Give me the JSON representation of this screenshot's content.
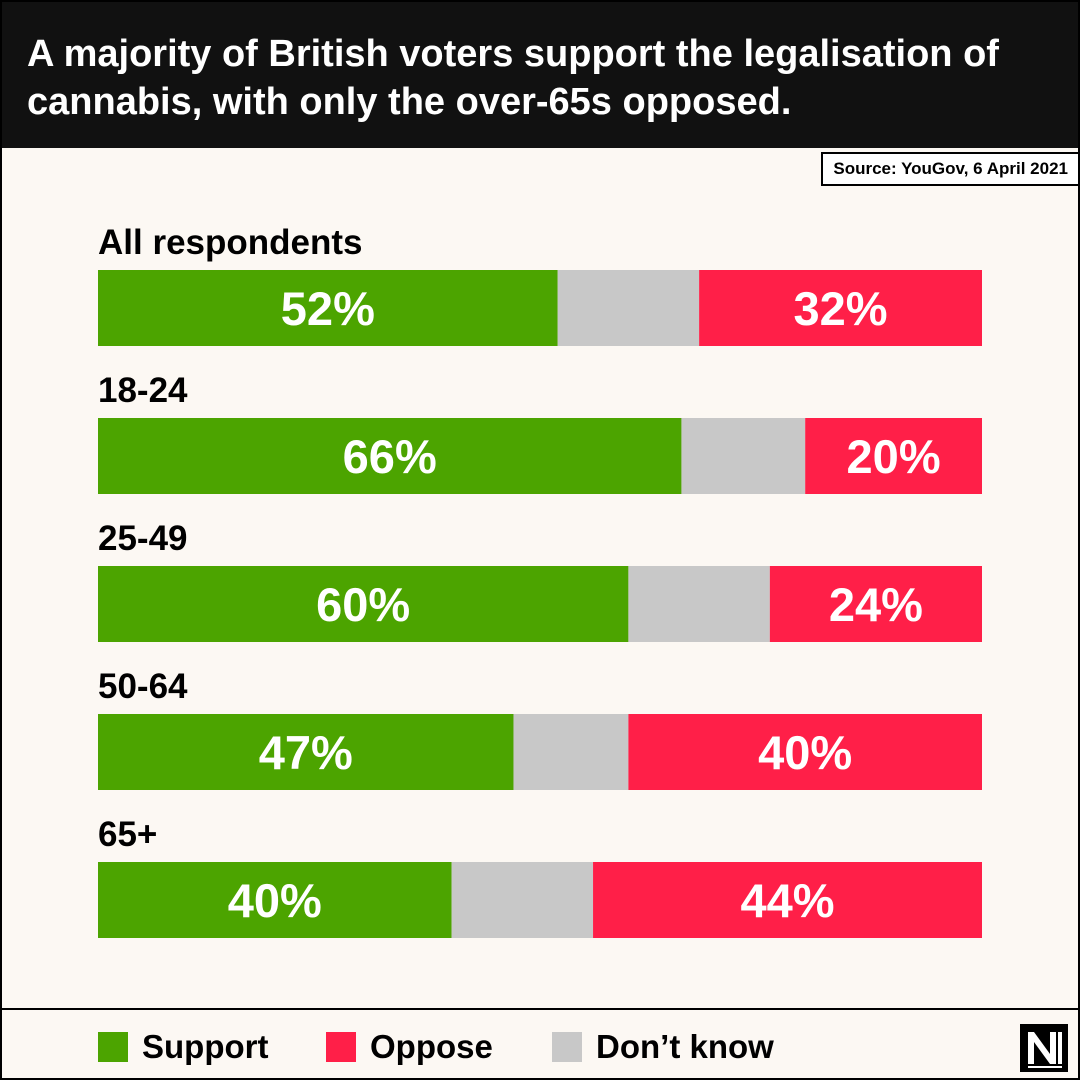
{
  "header": {
    "title": "A majority of British voters support the legalisation of cannabis, with only the over-65s opposed."
  },
  "source": "Source: YouGov, 6 April 2021",
  "colors": {
    "support": "#4ca400",
    "oppose": "#ff1f48",
    "dont_know": "#c8c8c8"
  },
  "chart_data": {
    "type": "bar",
    "orientation": "horizontal",
    "stacked": true,
    "categories": [
      "All respondents",
      "18-24",
      "25-49",
      "50-64",
      "65+"
    ],
    "series": [
      {
        "name": "Support",
        "values": [
          52,
          66,
          60,
          47,
          40
        ],
        "labels": [
          "52%",
          "66%",
          "60%",
          "47%",
          "40%"
        ]
      },
      {
        "name": "Don’t know",
        "values": [
          16,
          14,
          16,
          13,
          16
        ],
        "labels": [
          "",
          "",
          "",
          "",
          ""
        ]
      },
      {
        "name": "Oppose",
        "values": [
          32,
          20,
          24,
          40,
          44
        ],
        "labels": [
          "32%",
          "20%",
          "24%",
          "40%",
          "44%"
        ]
      }
    ],
    "xlim": [
      0,
      100
    ],
    "grid": false,
    "legend_position": "bottom"
  },
  "legend": {
    "support": "Support",
    "oppose": "Oppose",
    "dont_know": "Don’t know"
  },
  "logo_icon": "nm-logo-icon"
}
